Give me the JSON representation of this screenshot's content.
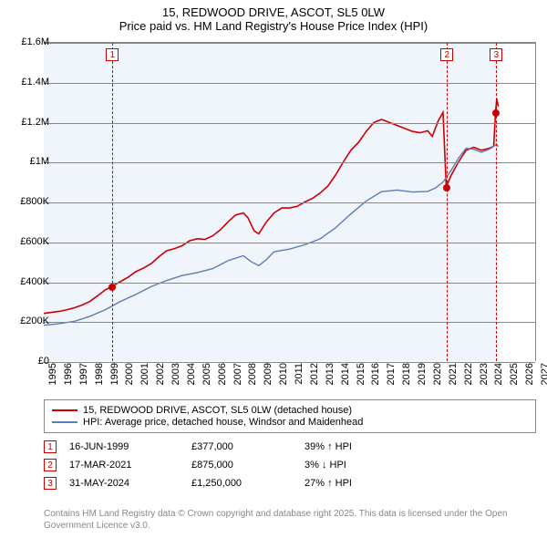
{
  "title_line1": "15, REDWOOD DRIVE, ASCOT, SL5 0LW",
  "title_line2": "Price paid vs. HM Land Registry's House Price Index (HPI)",
  "chart": {
    "type": "line",
    "plot_bg": "#f0f4fb",
    "future_bg": "#ffffff",
    "grid_color": "#888888",
    "x_start": 1995,
    "x_end": 2027,
    "x_data_end": 2024.42,
    "y_min": 0,
    "y_max": 1600000,
    "yticks": [
      {
        "v": 0,
        "label": "£0"
      },
      {
        "v": 200000,
        "label": "£200K"
      },
      {
        "v": 400000,
        "label": "£400K"
      },
      {
        "v": 600000,
        "label": "£600K"
      },
      {
        "v": 800000,
        "label": "£800K"
      },
      {
        "v": 1000000,
        "label": "£1M"
      },
      {
        "v": 1200000,
        "label": "£1.2M"
      },
      {
        "v": 1400000,
        "label": "£1.4M"
      },
      {
        "v": 1600000,
        "label": "£1.6M"
      }
    ],
    "xticks": [
      1995,
      1996,
      1997,
      1998,
      1999,
      2000,
      2001,
      2002,
      2003,
      2004,
      2005,
      2006,
      2007,
      2008,
      2009,
      2010,
      2011,
      2012,
      2013,
      2014,
      2015,
      2016,
      2017,
      2018,
      2019,
      2020,
      2021,
      2022,
      2023,
      2024,
      2025,
      2026,
      2027
    ],
    "series": [
      {
        "name": "price-paid",
        "label": "15, REDWOOD DRIVE, ASCOT, SL5 0LW (detached house)",
        "color": "#cc0000",
        "line_width": 1.6,
        "data": [
          [
            1995,
            240000
          ],
          [
            1995.5,
            245000
          ],
          [
            1996,
            250000
          ],
          [
            1996.5,
            258000
          ],
          [
            1997,
            268000
          ],
          [
            1997.5,
            282000
          ],
          [
            1998,
            300000
          ],
          [
            1998.5,
            328000
          ],
          [
            1999,
            358000
          ],
          [
            1999.46,
            377000
          ],
          [
            2000,
            400000
          ],
          [
            2000.5,
            422000
          ],
          [
            2001,
            450000
          ],
          [
            2001.5,
            468000
          ],
          [
            2002,
            490000
          ],
          [
            2002.5,
            525000
          ],
          [
            2003,
            555000
          ],
          [
            2003.5,
            565000
          ],
          [
            2004,
            580000
          ],
          [
            2004.5,
            605000
          ],
          [
            2005,
            615000
          ],
          [
            2005.5,
            612000
          ],
          [
            2006,
            630000
          ],
          [
            2006.5,
            660000
          ],
          [
            2007,
            700000
          ],
          [
            2007.5,
            735000
          ],
          [
            2008,
            745000
          ],
          [
            2008.3,
            720000
          ],
          [
            2008.7,
            655000
          ],
          [
            2009,
            640000
          ],
          [
            2009.5,
            700000
          ],
          [
            2010,
            745000
          ],
          [
            2010.5,
            770000
          ],
          [
            2011,
            770000
          ],
          [
            2011.5,
            778000
          ],
          [
            2012,
            800000
          ],
          [
            2012.5,
            818000
          ],
          [
            2013,
            845000
          ],
          [
            2013.5,
            880000
          ],
          [
            2014,
            935000
          ],
          [
            2014.5,
            1000000
          ],
          [
            2015,
            1060000
          ],
          [
            2015.5,
            1100000
          ],
          [
            2016,
            1155000
          ],
          [
            2016.5,
            1200000
          ],
          [
            2017,
            1215000
          ],
          [
            2017.5,
            1200000
          ],
          [
            2018,
            1185000
          ],
          [
            2018.5,
            1170000
          ],
          [
            2019,
            1155000
          ],
          [
            2019.5,
            1148000
          ],
          [
            2020,
            1158000
          ],
          [
            2020.3,
            1130000
          ],
          [
            2020.7,
            1210000
          ],
          [
            2021,
            1250000
          ],
          [
            2021.21,
            875000
          ],
          [
            2021.5,
            930000
          ],
          [
            2022,
            1000000
          ],
          [
            2022.5,
            1060000
          ],
          [
            2023,
            1075000
          ],
          [
            2023.5,
            1060000
          ],
          [
            2024,
            1070000
          ],
          [
            2024.3,
            1080000
          ],
          [
            2024.42,
            1250000
          ],
          [
            2024.5,
            1320000
          ],
          [
            2024.6,
            1280000
          ]
        ]
      },
      {
        "name": "hpi",
        "label": "HPI: Average price, detached house, Windsor and Maidenhead",
        "color": "#5b7fb3",
        "line_width": 1.4,
        "data": [
          [
            1995,
            180000
          ],
          [
            1996,
            188000
          ],
          [
            1997,
            200000
          ],
          [
            1998,
            225000
          ],
          [
            1999,
            258000
          ],
          [
            2000,
            300000
          ],
          [
            2001,
            335000
          ],
          [
            2002,
            375000
          ],
          [
            2003,
            405000
          ],
          [
            2004,
            430000
          ],
          [
            2005,
            445000
          ],
          [
            2006,
            465000
          ],
          [
            2007,
            505000
          ],
          [
            2008,
            530000
          ],
          [
            2008.5,
            500000
          ],
          [
            2009,
            480000
          ],
          [
            2009.5,
            510000
          ],
          [
            2010,
            550000
          ],
          [
            2011,
            563000
          ],
          [
            2012,
            585000
          ],
          [
            2013,
            615000
          ],
          [
            2014,
            670000
          ],
          [
            2015,
            740000
          ],
          [
            2016,
            805000
          ],
          [
            2017,
            852000
          ],
          [
            2018,
            860000
          ],
          [
            2019,
            850000
          ],
          [
            2020,
            853000
          ],
          [
            2020.5,
            870000
          ],
          [
            2021,
            900000
          ],
          [
            2021.5,
            955000
          ],
          [
            2022,
            1020000
          ],
          [
            2022.5,
            1070000
          ],
          [
            2023,
            1065000
          ],
          [
            2023.5,
            1050000
          ],
          [
            2024,
            1065000
          ],
          [
            2024.5,
            1090000
          ],
          [
            2024.6,
            1078000
          ]
        ]
      }
    ],
    "sale_markers": [
      {
        "n": 1,
        "x": 1999.46,
        "y": 377000,
        "color": "#cc0000"
      },
      {
        "n": 2,
        "x": 2021.21,
        "y": 875000,
        "color": "#cc0000"
      },
      {
        "n": 3,
        "x": 2024.42,
        "y": 1250000,
        "color": "#cc0000"
      }
    ]
  },
  "legend": {
    "items": [
      {
        "color": "#cc0000",
        "label": "15, REDWOOD DRIVE, ASCOT, SL5 0LW (detached house)"
      },
      {
        "color": "#5b7fb3",
        "label": "HPI: Average price, detached house, Windsor and Maidenhead"
      }
    ]
  },
  "sales": [
    {
      "n": 1,
      "date": "16-JUN-1999",
      "price": "£377,000",
      "pct": "39% ↑ HPI",
      "color": "#cc0000"
    },
    {
      "n": 2,
      "date": "17-MAR-2021",
      "price": "£875,000",
      "pct": "3% ↓ HPI",
      "color": "#cc0000"
    },
    {
      "n": 3,
      "date": "31-MAY-2024",
      "price": "£1,250,000",
      "pct": "27% ↑ HPI",
      "color": "#cc0000"
    }
  ],
  "attribution": "Contains HM Land Registry data © Crown copyright and database right 2025. This data is licensed under the Open Government Licence v3.0."
}
